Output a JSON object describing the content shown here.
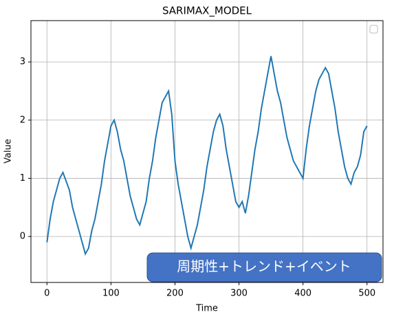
{
  "chart_data": {
    "type": "line",
    "title": "SARIMAX_MODEL",
    "x_label": "Time",
    "y_label": "Value",
    "annotation": "周期性+トレンド+イベント",
    "x": [
      0,
      5,
      10,
      15,
      20,
      25,
      30,
      35,
      40,
      45,
      50,
      55,
      60,
      65,
      70,
      75,
      80,
      85,
      90,
      95,
      100,
      105,
      110,
      115,
      120,
      125,
      130,
      135,
      140,
      145,
      150,
      155,
      160,
      165,
      170,
      175,
      180,
      185,
      190,
      195,
      200,
      205,
      210,
      215,
      220,
      225,
      230,
      235,
      240,
      245,
      250,
      255,
      260,
      265,
      270,
      275,
      280,
      285,
      290,
      295,
      300,
      305,
      310,
      315,
      320,
      325,
      330,
      335,
      340,
      345,
      350,
      355,
      360,
      365,
      370,
      375,
      380,
      385,
      390,
      395,
      400,
      405,
      410,
      415,
      420,
      425,
      430,
      435,
      440,
      445,
      450,
      455,
      460,
      465,
      470,
      475,
      480,
      485,
      490,
      495,
      500
    ],
    "series": [
      {
        "color": "#1f77b4",
        "values": [
          -0.1,
          0.3,
          0.6,
          0.8,
          1.0,
          1.1,
          0.95,
          0.8,
          0.5,
          0.3,
          0.1,
          -0.1,
          -0.3,
          -0.2,
          0.1,
          0.3,
          0.6,
          0.9,
          1.3,
          1.6,
          1.9,
          2.0,
          1.8,
          1.5,
          1.3,
          1.0,
          0.7,
          0.5,
          0.3,
          0.2,
          0.4,
          0.6,
          1.0,
          1.3,
          1.7,
          2.0,
          2.3,
          2.4,
          2.5,
          2.1,
          1.3,
          0.9,
          0.6,
          0.3,
          0.0,
          -0.2,
          0.0,
          0.2,
          0.5,
          0.8,
          1.2,
          1.5,
          1.8,
          2.0,
          2.1,
          1.9,
          1.5,
          1.2,
          0.9,
          0.6,
          0.5,
          0.6,
          0.4,
          0.7,
          1.1,
          1.5,
          1.8,
          2.2,
          2.5,
          2.8,
          3.1,
          2.8,
          2.5,
          2.3,
          2.0,
          1.7,
          1.5,
          1.3,
          1.2,
          1.1,
          1.0,
          1.5,
          1.9,
          2.2,
          2.5,
          2.7,
          2.8,
          2.9,
          2.8,
          2.5,
          2.2,
          1.8,
          1.5,
          1.2,
          1.0,
          0.9,
          1.1,
          1.2,
          1.4,
          1.8,
          1.9
        ]
      }
    ],
    "xlim": [
      -25,
      525
    ],
    "ylim": [
      -0.79,
      3.71
    ],
    "xticks": [
      0,
      100,
      200,
      300,
      400,
      500
    ],
    "yticks": [
      0,
      1,
      2,
      3
    ],
    "grid": true
  }
}
